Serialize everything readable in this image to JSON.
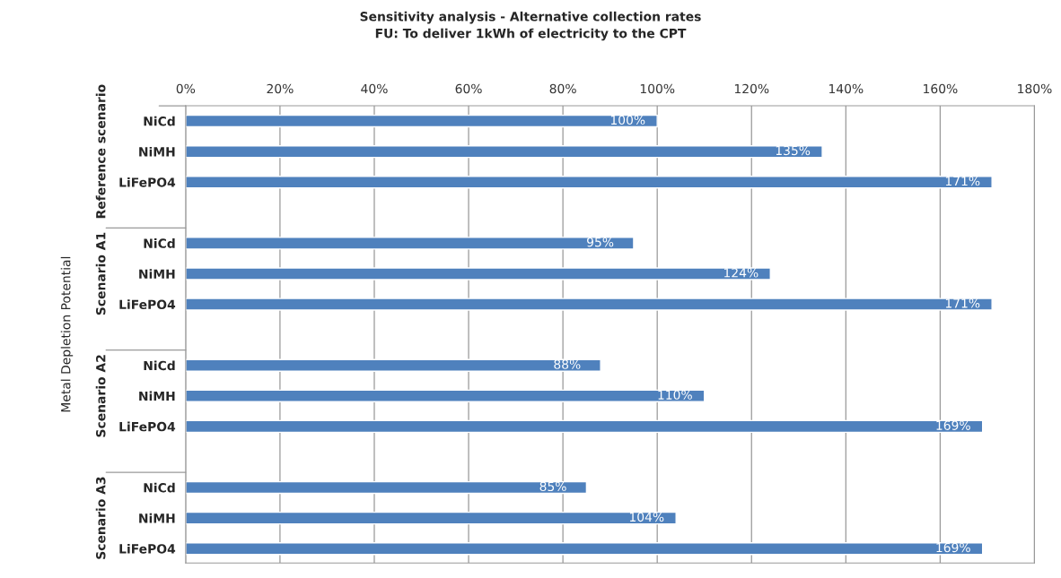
{
  "chart_data": {
    "type": "bar",
    "orientation": "horizontal",
    "title": "Sensitivity analysis - Alternative collection rates\nFU: To deliver 1kWh of electricity to the CPT",
    "ylabel": "Metal Depletion Potential",
    "categories": [
      "NiCd",
      "NiMH",
      "LiFePO4",
      null,
      "NiCd",
      "NiMH",
      "LiFePO4",
      null,
      "NiCd",
      "NiMH",
      "LiFePO4",
      null,
      "NiCd",
      "NiMH",
      "LiFePO4"
    ],
    "values": [
      100,
      135,
      171,
      null,
      95,
      124,
      171,
      null,
      88,
      110,
      169,
      null,
      85,
      104,
      169
    ],
    "value_labels": [
      "100%",
      "135%",
      "171%",
      null,
      "95%",
      "124%",
      "171%",
      null,
      "88%",
      "110%",
      "169%",
      null,
      "85%",
      "104%",
      "169%"
    ],
    "color": "#4f81bd",
    "annotations": [
      "Reference scenario",
      "Scenario A1",
      "Scenario A2",
      "Scenario A3"
    ],
    "xlim": [
      0,
      180
    ],
    "xticks": [
      {
        "value": 0,
        "label": "0%"
      },
      {
        "value": 20,
        "label": "20%"
      },
      {
        "value": 40,
        "label": "40%"
      },
      {
        "value": 60,
        "label": "60%"
      },
      {
        "value": 80,
        "label": "80%"
      },
      {
        "value": 100,
        "label": "100%"
      },
      {
        "value": 120,
        "label": "120%"
      },
      {
        "value": 140,
        "label": "140%"
      },
      {
        "value": 160,
        "label": "160%"
      },
      {
        "value": 180,
        "label": "180%"
      }
    ],
    "grid": "x",
    "legend": false
  }
}
